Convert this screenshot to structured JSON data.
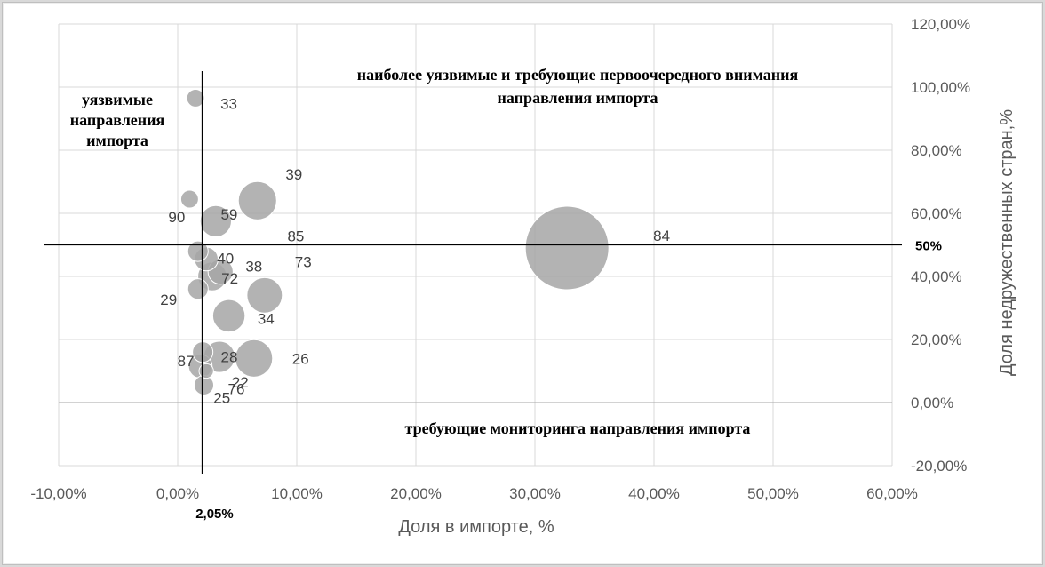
{
  "chart_data": {
    "type": "scatter",
    "title": "",
    "xlabel": "Доля в импорте, %",
    "ylabel": "Доля недружественных стран,%",
    "xlim": [
      -0.1,
      0.6
    ],
    "ylim": [
      -0.2,
      1.2
    ],
    "x_ticks": [
      "-10,00%",
      "0,00%",
      "10,00%",
      "20,00%",
      "30,00%",
      "40,00%",
      "50,00%",
      "60,00%"
    ],
    "y_ticks": [
      "-20,00%",
      "0,00%",
      "20,00%",
      "40,00%",
      "60,00%",
      "80,00%",
      "100,00%",
      "120,00%"
    ],
    "grid": true,
    "y_axis_side": "right",
    "bubble_color": "#a6a6a6",
    "thresholds": {
      "x": 0.0205,
      "x_label": "2,05%",
      "y": 0.5,
      "y_label": "50%"
    },
    "annotations": [
      {
        "lines": [
          "наиболее уязвимые и требующие первоочередного внимания",
          "направления импорта"
        ]
      },
      {
        "lines": [
          "уязвимые",
          "направления",
          "импорта"
        ]
      },
      {
        "lines": [
          "требующие мониторинга направления импорта"
        ]
      }
    ],
    "points": [
      {
        "label": "84",
        "x": 0.327,
        "y": 0.49,
        "size": 1.0
      },
      {
        "label": "39",
        "x": 0.067,
        "y": 0.64,
        "size": 0.21
      },
      {
        "label": "26",
        "x": 0.064,
        "y": 0.14,
        "size": 0.2
      },
      {
        "label": "73",
        "x": 0.073,
        "y": 0.34,
        "size": 0.18
      },
      {
        "label": "34",
        "x": 0.043,
        "y": 0.275,
        "size": 0.15
      },
      {
        "label": "28",
        "x": 0.035,
        "y": 0.145,
        "size": 0.14
      },
      {
        "label": "59",
        "x": 0.032,
        "y": 0.575,
        "size": 0.14
      },
      {
        "label": "72",
        "x": 0.029,
        "y": 0.4,
        "size": 0.12
      },
      {
        "label": "38",
        "x": 0.036,
        "y": 0.415,
        "size": 0.09
      },
      {
        "label": "22",
        "x": 0.019,
        "y": 0.115,
        "size": 0.08
      },
      {
        "label": "85",
        "x": 0.024,
        "y": 0.455,
        "size": 0.08
      },
      {
        "label": "40",
        "x": 0.017,
        "y": 0.48,
        "size": 0.06
      },
      {
        "label": "29",
        "x": 0.017,
        "y": 0.36,
        "size": 0.06
      },
      {
        "label": "87",
        "x": 0.021,
        "y": 0.16,
        "size": 0.06
      },
      {
        "label": "76",
        "x": 0.022,
        "y": 0.055,
        "size": 0.055
      },
      {
        "label": "33",
        "x": 0.015,
        "y": 0.965,
        "size": 0.045
      },
      {
        "label": "90",
        "x": 0.01,
        "y": 0.645,
        "size": 0.045
      },
      {
        "label": "25",
        "x": 0.024,
        "y": 0.1,
        "size": 0.03
      }
    ]
  }
}
